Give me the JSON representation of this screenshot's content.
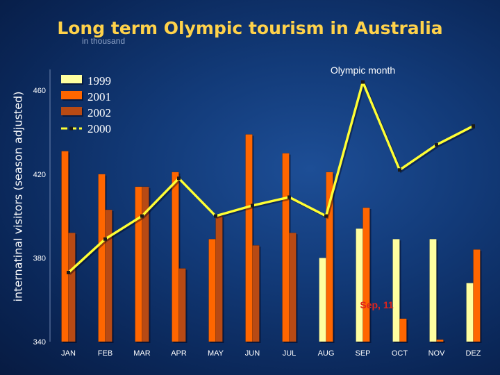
{
  "chart_data": {
    "type": "bar",
    "title": "Long term Olympic tourism in Australia",
    "subtitle": "in thousand",
    "ylabel": "internatinal visitors (season adjusted)",
    "xlabel": "",
    "ylim": [
      340,
      470
    ],
    "yticks": [
      340,
      380,
      420,
      460
    ],
    "categories": [
      "JAN",
      "FEB",
      "MAR",
      "APR",
      "MAY",
      "JUN",
      "JUL",
      "AUG",
      "SEP",
      "OCT",
      "NOV",
      "DEZ"
    ],
    "series": [
      {
        "name": "1999",
        "kind": "bar",
        "color": "#ffffa0",
        "values": [
          null,
          null,
          null,
          null,
          null,
          null,
          null,
          380,
          394,
          389,
          389,
          368
        ]
      },
      {
        "name": "2001",
        "kind": "bar",
        "color": "#ff6600",
        "values": [
          431,
          420,
          414,
          421,
          389,
          439,
          430,
          421,
          404,
          351,
          341,
          384
        ]
      },
      {
        "name": "2002",
        "kind": "bar",
        "color": "#b84a14",
        "values": [
          392,
          403,
          414,
          375,
          400,
          386,
          392,
          null,
          null,
          null,
          null,
          null
        ]
      },
      {
        "name": "2000",
        "kind": "line",
        "color": "#ffff33",
        "values": [
          373,
          389,
          400,
          418,
          400,
          405,
          409,
          400,
          464,
          422,
          434,
          443
        ]
      }
    ],
    "annotations": [
      {
        "text": "Olympic month",
        "category": "SEP",
        "value": 468
      },
      {
        "text": "Sep, 11",
        "category": "SEP",
        "value": 356,
        "color": "#e0241b"
      }
    ],
    "legend": "top-left",
    "grid": false
  }
}
